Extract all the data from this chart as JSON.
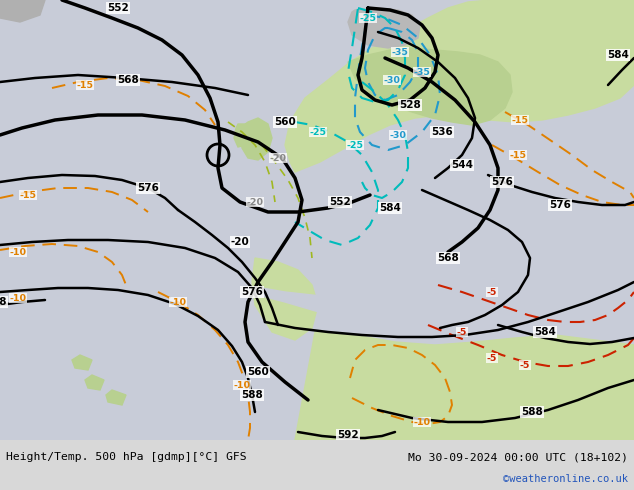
{
  "title_left": "Height/Temp. 500 hPa [gdmp][°C] GFS",
  "title_right": "Mo 30-09-2024 00:00 UTC (18+102)",
  "credit": "©weatheronline.co.uk",
  "sea_color": "#c8ccd8",
  "land_color": "#c8dca0",
  "land_color2": "#b8d090",
  "bottom_bar_color": "#d8d8d8",
  "height_contour_color": "#000000",
  "temp_orange_color": "#e08000",
  "temp_blue_color": "#2299cc",
  "temp_cyan_color": "#00bbbb",
  "temp_red_color": "#cc2200",
  "temp_green_color": "#88bb00"
}
